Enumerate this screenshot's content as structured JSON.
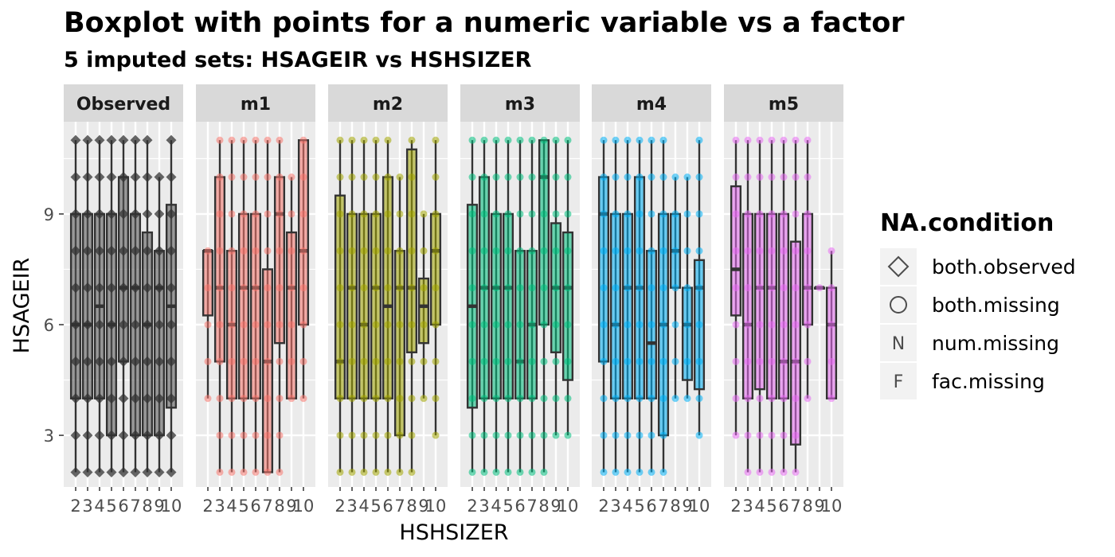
{
  "chart_data": {
    "type": "boxplot",
    "title": "Boxplot with points for a numeric variable vs a factor",
    "subtitle": "5  imputed sets:  HSAGEIR vs HSHSIZER",
    "xlabel": "HSHSIZER",
    "ylabel": "HSAGEIR",
    "ylim": [
      1.6,
      11.5
    ],
    "y_ticks": [
      3,
      6,
      9
    ],
    "categories": [
      "2",
      "3",
      "4",
      "5",
      "6",
      "7",
      "8",
      "9",
      "10"
    ],
    "x_tick_labels": [
      "2",
      "3",
      "4",
      "5",
      "6",
      "7",
      "8",
      "9",
      "10"
    ],
    "grid": true,
    "legend": {
      "title": "NA.condition",
      "position": "right",
      "items": [
        {
          "label": "both.observed",
          "shape": "diamond"
        },
        {
          "label": "both.missing",
          "shape": "circle"
        },
        {
          "label": "num.missing",
          "shape": "N"
        },
        {
          "label": "fac.missing",
          "shape": "F"
        }
      ]
    },
    "panels": [
      {
        "name": "Observed",
        "color": "#555555",
        "boxes": [
          {
            "q1": 4,
            "median": 6,
            "q3": 9,
            "lo": 2,
            "hi": 11
          },
          {
            "q1": 4,
            "median": 6,
            "q3": 9,
            "lo": 2,
            "hi": 11
          },
          {
            "q1": 4,
            "median": 6.5,
            "q3": 9,
            "lo": 2,
            "hi": 11
          },
          {
            "q1": 3,
            "median": 6,
            "q3": 9,
            "lo": 2,
            "hi": 11
          },
          {
            "q1": 5,
            "median": 7,
            "q3": 10,
            "lo": 2,
            "hi": 11
          },
          {
            "q1": 3,
            "median": 7,
            "q3": 9,
            "lo": 2,
            "hi": 11
          },
          {
            "q1": 3,
            "median": 6,
            "q3": 8.5,
            "lo": 2,
            "hi": 11
          },
          {
            "q1": 3,
            "median": 7,
            "q3": 8,
            "lo": 2,
            "hi": 10
          },
          {
            "q1": 3.75,
            "median": 6.5,
            "q3": 9.25,
            "lo": 2,
            "hi": 11
          }
        ]
      },
      {
        "name": "m1",
        "color": "#F8766D",
        "boxes": [
          {
            "q1": 6.25,
            "median": 8,
            "q3": 8,
            "lo": 4,
            "hi": 8
          },
          {
            "q1": 5,
            "median": 7,
            "q3": 10,
            "lo": 2,
            "hi": 11
          },
          {
            "q1": 4,
            "median": 6,
            "q3": 8,
            "lo": 2,
            "hi": 11
          },
          {
            "q1": 4,
            "median": 7,
            "q3": 9,
            "lo": 2,
            "hi": 11
          },
          {
            "q1": 4,
            "median": 7,
            "q3": 9,
            "lo": 2,
            "hi": 11
          },
          {
            "q1": 2,
            "median": 5,
            "q3": 7.5,
            "lo": 2,
            "hi": 11
          },
          {
            "q1": 5.5,
            "median": 9,
            "q3": 10,
            "lo": 2,
            "hi": 11
          },
          {
            "q1": 4,
            "median": 7,
            "q3": 8.5,
            "lo": 4,
            "hi": 10
          },
          {
            "q1": 6,
            "median": 8,
            "q3": 11,
            "lo": 4,
            "hi": 11
          }
        ]
      },
      {
        "name": "m2",
        "color": "#A3A500",
        "boxes": [
          {
            "q1": 4,
            "median": 5,
            "q3": 9.5,
            "lo": 2,
            "hi": 11
          },
          {
            "q1": 4,
            "median": 7,
            "q3": 9,
            "lo": 2,
            "hi": 11
          },
          {
            "q1": 4,
            "median": 6,
            "q3": 9,
            "lo": 2,
            "hi": 11
          },
          {
            "q1": 4,
            "median": 7,
            "q3": 9,
            "lo": 2,
            "hi": 11
          },
          {
            "q1": 4,
            "median": 6.5,
            "q3": 10,
            "lo": 2,
            "hi": 11
          },
          {
            "q1": 3,
            "median": 7,
            "q3": 8,
            "lo": 2,
            "hi": 10
          },
          {
            "q1": 5.25,
            "median": 7,
            "q3": 10.75,
            "lo": 2,
            "hi": 11
          },
          {
            "q1": 5.5,
            "median": 6.5,
            "q3": 7.25,
            "lo": 4,
            "hi": 9
          },
          {
            "q1": 6,
            "median": 8,
            "q3": 9,
            "lo": 3,
            "hi": 11
          }
        ]
      },
      {
        "name": "m3",
        "color": "#00BF7D",
        "boxes": [
          {
            "q1": 3.75,
            "median": 6.5,
            "q3": 9.25,
            "lo": 2,
            "hi": 11
          },
          {
            "q1": 4,
            "median": 7,
            "q3": 10,
            "lo": 2,
            "hi": 11
          },
          {
            "q1": 4,
            "median": 7,
            "q3": 9,
            "lo": 2,
            "hi": 11
          },
          {
            "q1": 4,
            "median": 7,
            "q3": 9,
            "lo": 2,
            "hi": 11
          },
          {
            "q1": 4,
            "median": 5,
            "q3": 8,
            "lo": 2,
            "hi": 11
          },
          {
            "q1": 4,
            "median": 6,
            "q3": 8,
            "lo": 2,
            "hi": 11
          },
          {
            "q1": 6,
            "median": 10,
            "q3": 11,
            "lo": 2,
            "hi": 11
          },
          {
            "q1": 5.25,
            "median": 7,
            "q3": 8.75,
            "lo": 3,
            "hi": 11
          },
          {
            "q1": 4.5,
            "median": 7,
            "q3": 8.5,
            "lo": 3,
            "hi": 11
          }
        ]
      },
      {
        "name": "m4",
        "color": "#00B0F6",
        "boxes": [
          {
            "q1": 5,
            "median": 9,
            "q3": 10,
            "lo": 2,
            "hi": 11
          },
          {
            "q1": 4,
            "median": 6,
            "q3": 9,
            "lo": 2,
            "hi": 11
          },
          {
            "q1": 4,
            "median": 7,
            "q3": 9,
            "lo": 2,
            "hi": 11
          },
          {
            "q1": 4,
            "median": 7,
            "q3": 10,
            "lo": 2,
            "hi": 11
          },
          {
            "q1": 4,
            "median": 5.5,
            "q3": 8,
            "lo": 2,
            "hi": 11
          },
          {
            "q1": 3,
            "median": 6,
            "q3": 9,
            "lo": 2,
            "hi": 11
          },
          {
            "q1": 7,
            "median": 8,
            "q3": 9,
            "lo": 4,
            "hi": 10
          },
          {
            "q1": 4.5,
            "median": 6,
            "q3": 7,
            "lo": 4,
            "hi": 10
          },
          {
            "q1": 4.25,
            "median": 7,
            "q3": 7.75,
            "lo": 3,
            "hi": 11
          }
        ]
      },
      {
        "name": "m5",
        "color": "#E76BF3",
        "boxes": [
          {
            "q1": 6.25,
            "median": 7.5,
            "q3": 9.75,
            "lo": 3,
            "hi": 11
          },
          {
            "q1": 4,
            "median": 6,
            "q3": 9,
            "lo": 2,
            "hi": 11
          },
          {
            "q1": 4.25,
            "median": 7,
            "q3": 9,
            "lo": 2,
            "hi": 11
          },
          {
            "q1": 4,
            "median": 7,
            "q3": 9,
            "lo": 2,
            "hi": 11
          },
          {
            "q1": 4,
            "median": 5,
            "q3": 9,
            "lo": 2,
            "hi": 11
          },
          {
            "q1": 2.75,
            "median": 5,
            "q3": 8.25,
            "lo": 2,
            "hi": 11
          },
          {
            "q1": 6,
            "median": 7,
            "q3": 9,
            "lo": 4,
            "hi": 11
          },
          {
            "q1": 7,
            "median": 7,
            "q3": 7,
            "lo": 7,
            "hi": 7
          },
          {
            "q1": 4,
            "median": 6,
            "q3": 7,
            "lo": 4,
            "hi": 8
          }
        ]
      }
    ]
  }
}
